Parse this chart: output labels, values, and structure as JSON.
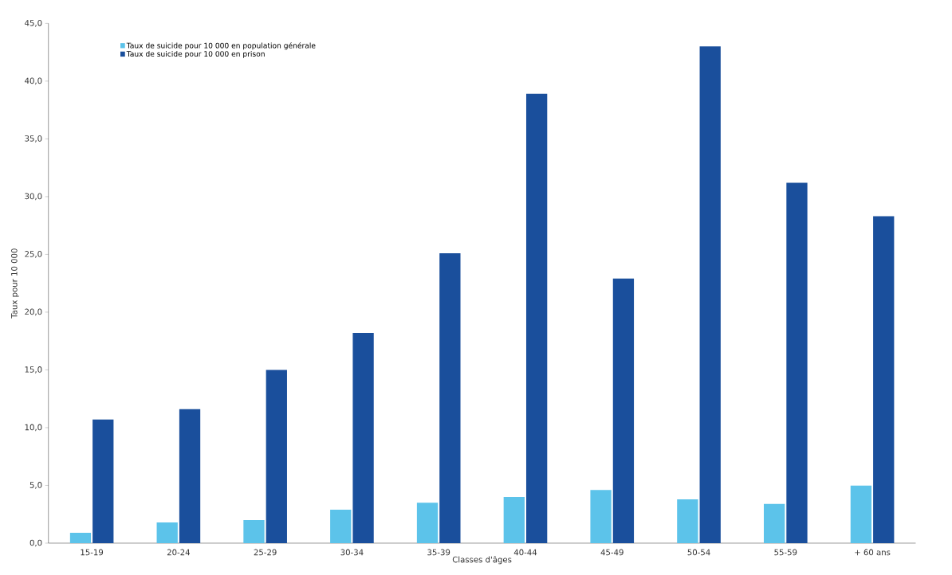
{
  "chart_data": {
    "type": "bar",
    "xlabel": "Classes d'âges",
    "ylabel": "Taux pour 10 000",
    "categories": [
      "15-19",
      "20-24",
      "25-29",
      "30-34",
      "35-39",
      "40-44",
      "45-49",
      "50-54",
      "55-59",
      "+ 60 ans"
    ],
    "series": [
      {
        "name": "Taux de suicide pour 10 000 en population générale",
        "color": "#5cc3ea",
        "values": [
          0.9,
          1.8,
          2.0,
          2.9,
          3.5,
          4.0,
          4.6,
          3.8,
          3.4,
          5.0
        ]
      },
      {
        "name": "Taux de suicide pour 10 000 en prison",
        "color": "#1a4f9c",
        "values": [
          10.7,
          11.6,
          15.0,
          18.2,
          25.1,
          38.9,
          22.9,
          43.0,
          31.2,
          28.3
        ]
      }
    ],
    "ylim": [
      0,
      45
    ],
    "yticks": [
      {
        "value": 0,
        "label": "0,0"
      },
      {
        "value": 5,
        "label": "5,0"
      },
      {
        "value": 10,
        "label": "10,0"
      },
      {
        "value": 15,
        "label": "15,0"
      },
      {
        "value": 20,
        "label": "20,0"
      },
      {
        "value": 25,
        "label": "25,0"
      },
      {
        "value": 30,
        "label": "30,0"
      },
      {
        "value": 35,
        "label": "35,0"
      },
      {
        "value": 40,
        "label": "40,0"
      },
      {
        "value": 45,
        "label": "45,0"
      }
    ],
    "grid": false,
    "legend": "top left"
  }
}
